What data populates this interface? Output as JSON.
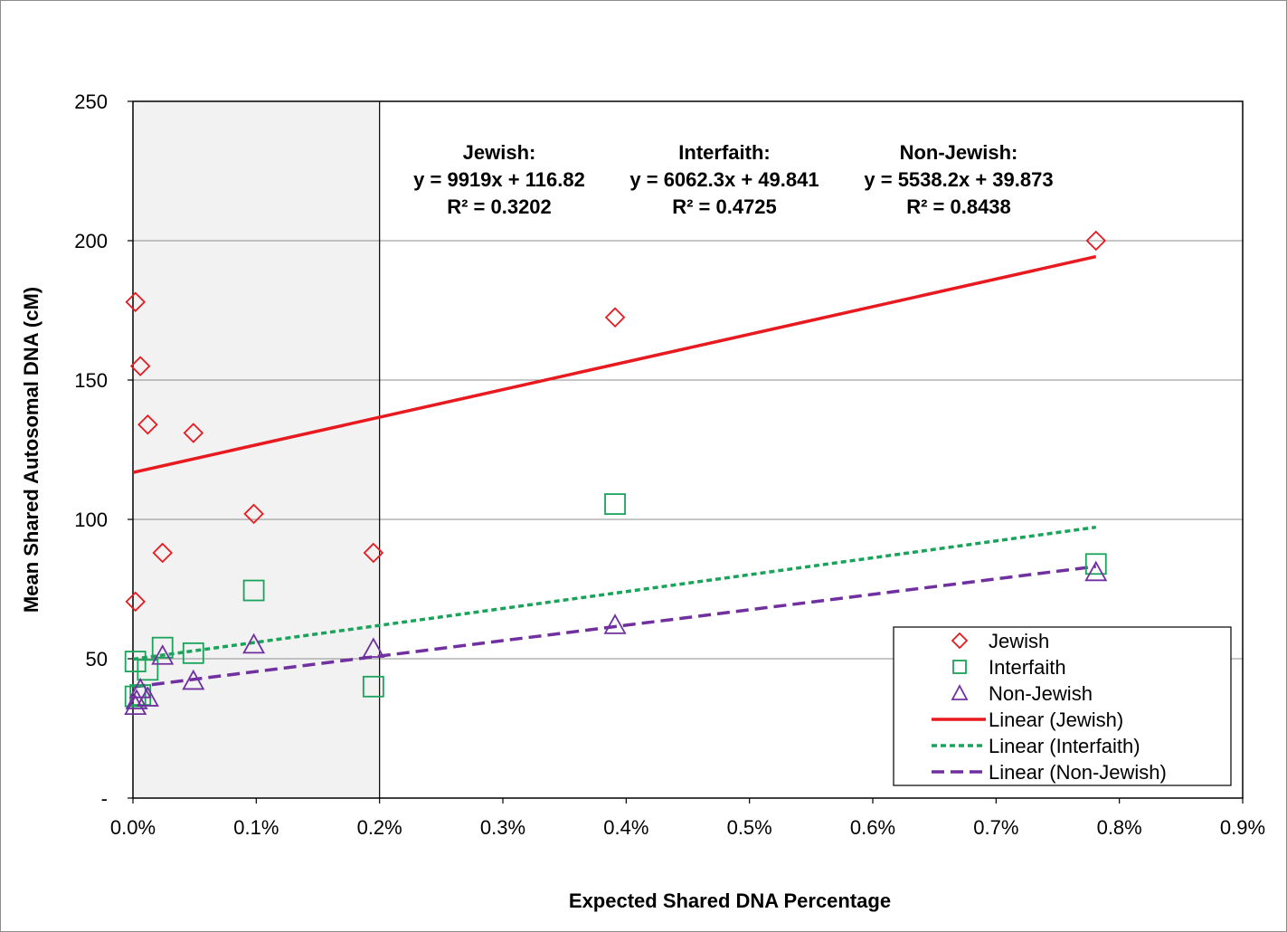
{
  "chart_data": {
    "type": "scatter",
    "xlabel": "Expected Shared DNA Percentage",
    "ylabel": "Mean Shared Autosomal  DNA (cM)",
    "xlim": [
      0,
      0.9
    ],
    "ylim": [
      0,
      250
    ],
    "x_ticks": [
      "0.0%",
      "0.1%",
      "0.2%",
      "0.3%",
      "0.4%",
      "0.5%",
      "0.6%",
      "0.7%",
      "0.8%",
      "0.9%"
    ],
    "y_ticks": [
      "-",
      "50",
      "100",
      "150",
      "200",
      "250"
    ],
    "grid": "horizontal",
    "shaded_region": {
      "x_from": 0,
      "x_to": 0.2
    },
    "series": [
      {
        "name": "Jewish",
        "marker": "diamond",
        "color": "#e8191f",
        "points": [
          [
            0.002,
            178
          ],
          [
            0.006,
            155
          ],
          [
            0.012,
            134
          ],
          [
            0.049,
            131
          ],
          [
            0.098,
            102
          ],
          [
            0.024,
            88
          ],
          [
            0.195,
            88
          ],
          [
            0.002,
            70.5
          ],
          [
            0.391,
            172.5
          ],
          [
            0.781,
            200
          ]
        ]
      },
      {
        "name": "Interfaith",
        "marker": "square",
        "color": "#1aa35a",
        "points": [
          [
            0.002,
            49
          ],
          [
            0.012,
            46
          ],
          [
            0.024,
            54
          ],
          [
            0.049,
            52
          ],
          [
            0.098,
            74.5
          ],
          [
            0.195,
            40
          ],
          [
            0.002,
            36.5
          ],
          [
            0.006,
            37
          ],
          [
            0.391,
            105.5
          ],
          [
            0.781,
            84
          ]
        ]
      },
      {
        "name": "Non-Jewish",
        "marker": "triangle",
        "color": "#7030a0",
        "points": [
          [
            0.002,
            33
          ],
          [
            0.003,
            35
          ],
          [
            0.006,
            39
          ],
          [
            0.012,
            36
          ],
          [
            0.024,
            51
          ],
          [
            0.049,
            42
          ],
          [
            0.098,
            55
          ],
          [
            0.195,
            53.5
          ],
          [
            0.391,
            62
          ],
          [
            0.781,
            81
          ]
        ]
      }
    ],
    "trendlines": [
      {
        "name": "Linear (Jewish)",
        "slope": 99.19,
        "intercept": 116.82,
        "x_range": [
          0,
          0.781
        ],
        "color": "#e8191f",
        "dash": "solid"
      },
      {
        "name": "Linear (Interfaith)",
        "slope": 60.623,
        "intercept": 49.841,
        "x_range": [
          0,
          0.781
        ],
        "color": "#1aa35a",
        "dash": "dotted"
      },
      {
        "name": "Linear (Non-Jewish)",
        "slope": 55.382,
        "intercept": 39.873,
        "x_range": [
          0,
          0.781
        ],
        "color": "#7030a0",
        "dash": "dashed"
      }
    ],
    "annotations": [
      {
        "lines": [
          "Jewish:",
          "y = 9919x + 116.82",
          "R² = 0.3202"
        ]
      },
      {
        "lines": [
          "Interfaith:",
          "y = 6062.3x + 49.841",
          "R² = 0.4725"
        ]
      },
      {
        "lines": [
          "Non-Jewish:",
          "y = 5538.2x + 39.873",
          "R² = 0.8438"
        ]
      }
    ],
    "legend": {
      "placement": "bottom-right",
      "entries": [
        "Jewish",
        "Interfaith",
        "Non-Jewish",
        "Linear (Jewish)",
        "Linear (Interfaith)",
        "Linear (Non-Jewish)"
      ]
    }
  }
}
